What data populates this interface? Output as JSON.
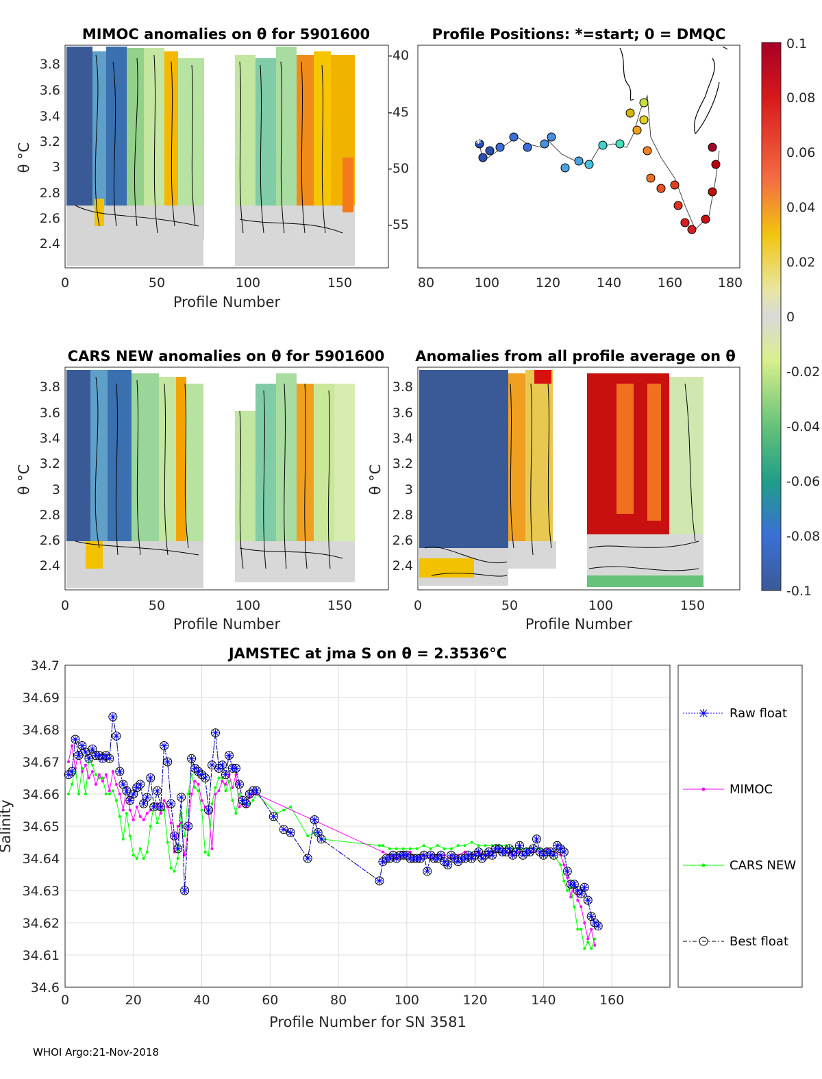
{
  "footer": "WHOI Argo:21-Nov-2018",
  "colorbar": {
    "ticks": [
      "0.1",
      "0.08",
      "0.06",
      "0.04",
      "0.02",
      "0",
      "-0.02",
      "-0.04",
      "-0.06",
      "-0.08",
      "-0.1"
    ]
  },
  "panels": {
    "mimoc": {
      "title": "MIMOC anomalies on θ  for 5901600",
      "ylabel": "θ °C",
      "xlabel": "Profile Number",
      "xticks": [
        "0",
        "50",
        "100",
        "150"
      ],
      "yticks": [
        "3.8",
        "3.6",
        "3.4",
        "3.2",
        "3",
        "2.8",
        "2.6",
        "2.4"
      ]
    },
    "positions": {
      "title": "Profile Positions: *=start; 0 = DMQC",
      "xticks": [
        "80",
        "100",
        "120",
        "140",
        "160",
        "180"
      ],
      "yticks": [
        "-40",
        "-45",
        "-50",
        "-55"
      ]
    },
    "cars": {
      "title": "CARS NEW anomalies on θ for 5901600",
      "ylabel": "θ °C",
      "xlabel": "Profile Number",
      "xticks": [
        "0",
        "50",
        "100",
        "150"
      ],
      "yticks": [
        "3.8",
        "3.6",
        "3.4",
        "3.2",
        "3",
        "2.8",
        "2.6",
        "2.4"
      ]
    },
    "allavg": {
      "title": "Anomalies from all profile average on θ",
      "ylabel": "θ °C",
      "xlabel": "Profile Number",
      "xticks": [
        "0",
        "50",
        "100",
        "150"
      ],
      "yticks": [
        "3.8",
        "3.6",
        "3.4",
        "3.2",
        "3",
        "2.8",
        "2.6",
        "2.4"
      ]
    }
  },
  "chart_data": {
    "type": "line",
    "title": "JAMSTEC at jma S on θ = 2.3536°C",
    "xlabel": "Profile Number for SN 3581",
    "ylabel": "Salinity",
    "xlim": [
      0,
      177
    ],
    "ylim": [
      34.6,
      34.7
    ],
    "xticks": [
      "0",
      "20",
      "40",
      "60",
      "80",
      "100",
      "120",
      "140",
      "160"
    ],
    "yticks": [
      "34.7",
      "34.69",
      "34.68",
      "34.67",
      "34.66",
      "34.65",
      "34.64",
      "34.63",
      "34.62",
      "34.61",
      "34.6"
    ],
    "legend_position": "right",
    "series": [
      {
        "name": "Raw float",
        "color": "#0000ff",
        "x": [
          1,
          2,
          3,
          4,
          5,
          6,
          7,
          8,
          9,
          10,
          11,
          12,
          13,
          14,
          15,
          16,
          17,
          18,
          19,
          20,
          21,
          22,
          23,
          24,
          25,
          26,
          27,
          28,
          29,
          30,
          31,
          32,
          33,
          34,
          35,
          36,
          37,
          38,
          39,
          40,
          41,
          42,
          43,
          44,
          45,
          46,
          47,
          48,
          49,
          50,
          51,
          52,
          53,
          54,
          55,
          56,
          61,
          64,
          66,
          71,
          73,
          74,
          75,
          92,
          93,
          94,
          95,
          96,
          97,
          98,
          99,
          100,
          101,
          102,
          103,
          104,
          105,
          106,
          107,
          108,
          109,
          110,
          111,
          112,
          113,
          114,
          115,
          116,
          117,
          118,
          119,
          120,
          121,
          122,
          123,
          124,
          125,
          126,
          127,
          128,
          129,
          130,
          131,
          132,
          133,
          134,
          135,
          136,
          137,
          138,
          139,
          140,
          141,
          142,
          143,
          144,
          145,
          146,
          147,
          148,
          149,
          150,
          151,
          152,
          153,
          154,
          155,
          156
        ],
        "y": [
          34.666,
          34.667,
          34.677,
          34.672,
          34.675,
          34.673,
          34.671,
          34.674,
          34.672,
          34.672,
          34.671,
          34.672,
          34.671,
          34.684,
          34.678,
          34.667,
          34.663,
          34.661,
          34.658,
          34.66,
          34.662,
          34.663,
          34.657,
          34.659,
          34.665,
          34.656,
          34.661,
          34.656,
          34.675,
          34.67,
          34.657,
          34.647,
          34.643,
          34.659,
          34.63,
          34.65,
          34.671,
          34.668,
          34.667,
          34.666,
          34.665,
          34.655,
          34.669,
          34.679,
          34.668,
          34.669,
          34.666,
          34.672,
          34.668,
          34.668,
          34.663,
          34.658,
          34.657,
          34.66,
          34.661,
          34.661,
          34.653,
          34.649,
          34.648,
          34.64,
          34.652,
          34.648,
          34.646,
          34.633,
          34.639,
          34.64,
          34.64,
          34.641,
          34.64,
          34.641,
          34.641,
          34.641,
          34.64,
          34.64,
          34.64,
          34.64,
          34.641,
          34.636,
          34.641,
          34.64,
          34.64,
          34.641,
          34.639,
          34.638,
          34.641,
          34.64,
          34.639,
          34.64,
          34.64,
          34.641,
          34.64,
          34.641,
          34.642,
          34.64,
          34.641,
          34.642,
          34.641,
          34.643,
          34.643,
          34.642,
          34.642,
          34.643,
          34.641,
          34.642,
          34.644,
          34.641,
          34.642,
          34.642,
          34.643,
          34.646,
          34.642,
          34.641,
          34.642,
          34.642,
          34.641,
          34.644,
          34.643,
          34.642,
          34.636,
          34.632,
          34.632,
          34.63,
          34.629,
          34.631,
          34.627,
          34.622,
          34.62,
          34.619
        ]
      },
      {
        "name": "MIMOC",
        "color": "#ff00ff",
        "x": [
          1,
          2,
          3,
          4,
          5,
          6,
          7,
          8,
          9,
          10,
          11,
          12,
          13,
          14,
          15,
          16,
          17,
          18,
          19,
          20,
          21,
          22,
          23,
          24,
          25,
          26,
          27,
          28,
          29,
          30,
          31,
          32,
          33,
          34,
          35,
          36,
          37,
          38,
          39,
          40,
          41,
          42,
          43,
          44,
          45,
          46,
          47,
          48,
          49,
          50,
          51,
          52,
          53,
          54,
          55,
          56,
          93,
          95,
          97,
          99,
          101,
          103,
          105,
          107,
          109,
          111,
          113,
          115,
          117,
          119,
          121,
          123,
          125,
          127,
          129,
          131,
          133,
          135,
          137,
          139,
          141,
          143,
          145,
          146,
          147,
          148,
          149,
          150,
          151,
          152,
          153,
          154,
          155
        ],
        "y": [
          34.67,
          34.675,
          34.668,
          34.673,
          34.667,
          34.669,
          34.665,
          34.667,
          34.663,
          34.666,
          34.664,
          34.666,
          34.661,
          34.667,
          34.663,
          34.66,
          34.655,
          34.662,
          34.655,
          34.652,
          34.656,
          34.653,
          34.652,
          34.654,
          34.655,
          34.656,
          34.657,
          34.654,
          34.658,
          34.656,
          34.651,
          34.642,
          34.65,
          34.651,
          34.641,
          34.649,
          34.66,
          34.664,
          34.663,
          34.658,
          34.656,
          34.654,
          34.643,
          34.66,
          34.661,
          34.664,
          34.663,
          34.666,
          34.662,
          34.666,
          34.656,
          34.657,
          34.656,
          34.659,
          34.66,
          34.66,
          34.642,
          34.641,
          34.64,
          34.641,
          34.642,
          34.64,
          34.641,
          34.64,
          34.641,
          34.641,
          34.64,
          34.641,
          34.642,
          34.641,
          34.642,
          34.641,
          34.642,
          34.642,
          34.642,
          34.641,
          34.642,
          34.642,
          34.642,
          34.642,
          34.643,
          34.642,
          34.641,
          34.638,
          34.634,
          34.628,
          34.632,
          34.627,
          34.625,
          34.62,
          34.615,
          34.618,
          34.613
        ]
      },
      {
        "name": "CARS NEW",
        "color": "#00ff00",
        "x": [
          1,
          2,
          3,
          4,
          5,
          6,
          7,
          8,
          9,
          10,
          11,
          12,
          13,
          14,
          15,
          16,
          17,
          18,
          19,
          20,
          21,
          22,
          23,
          24,
          25,
          26,
          27,
          28,
          29,
          30,
          31,
          32,
          33,
          34,
          35,
          36,
          37,
          38,
          39,
          40,
          41,
          42,
          43,
          44,
          45,
          46,
          47,
          48,
          49,
          50,
          51,
          52,
          53,
          54,
          55,
          56,
          62,
          64,
          66,
          71,
          73,
          75,
          92,
          93,
          95,
          97,
          99,
          101,
          103,
          105,
          107,
          109,
          111,
          113,
          115,
          117,
          119,
          121,
          123,
          125,
          127,
          129,
          131,
          133,
          135,
          137,
          139,
          141,
          143,
          145,
          146,
          147,
          148,
          149,
          150,
          151,
          152,
          153,
          154,
          155
        ],
        "y": [
          34.66,
          34.663,
          34.668,
          34.66,
          34.668,
          34.66,
          34.671,
          34.669,
          34.666,
          34.665,
          34.665,
          34.66,
          34.66,
          34.661,
          34.658,
          34.653,
          34.646,
          34.654,
          34.647,
          34.641,
          34.64,
          34.643,
          34.64,
          34.642,
          34.65,
          34.657,
          34.651,
          34.655,
          34.655,
          34.645,
          34.637,
          34.636,
          34.64,
          34.654,
          34.647,
          34.66,
          34.666,
          34.662,
          34.661,
          34.655,
          34.642,
          34.641,
          34.657,
          34.662,
          34.665,
          34.665,
          34.661,
          34.664,
          34.658,
          34.654,
          34.66,
          34.658,
          34.656,
          34.657,
          34.658,
          34.66,
          34.654,
          34.655,
          34.656,
          34.647,
          34.648,
          34.646,
          34.644,
          34.644,
          34.643,
          34.643,
          34.643,
          34.643,
          34.643,
          34.644,
          34.643,
          34.644,
          34.643,
          34.643,
          34.644,
          34.644,
          34.645,
          34.644,
          34.644,
          34.644,
          34.644,
          34.644,
          34.643,
          34.643,
          34.643,
          34.643,
          34.643,
          34.642,
          34.641,
          34.638,
          34.633,
          34.63,
          34.631,
          34.625,
          34.618,
          34.618,
          34.612,
          34.614,
          34.612,
          34.615
        ]
      },
      {
        "name": "Best float",
        "color": "#000000",
        "x": [
          1,
          2,
          3,
          4,
          5,
          6,
          7,
          8,
          9,
          10,
          11,
          12,
          13,
          14,
          15,
          16,
          17,
          18,
          19,
          20,
          21,
          22,
          23,
          24,
          25,
          26,
          27,
          28,
          29,
          30,
          31,
          32,
          33,
          34,
          35,
          36,
          37,
          38,
          39,
          40,
          41,
          42,
          43,
          44,
          45,
          46,
          47,
          48,
          49,
          50,
          51,
          52,
          53,
          54,
          55,
          56,
          61,
          64,
          66,
          71,
          73,
          74,
          75,
          92,
          93,
          94,
          95,
          96,
          97,
          98,
          99,
          100,
          101,
          102,
          103,
          104,
          105,
          106,
          107,
          108,
          109,
          110,
          111,
          112,
          113,
          114,
          115,
          116,
          117,
          118,
          119,
          120,
          121,
          122,
          123,
          124,
          125,
          126,
          127,
          128,
          129,
          130,
          131,
          132,
          133,
          134,
          135,
          136,
          137,
          138,
          139,
          140,
          141,
          142,
          143,
          144,
          145,
          146,
          147,
          148,
          149,
          150,
          151,
          152,
          153,
          154,
          155,
          156
        ],
        "y": [
          34.666,
          34.667,
          34.677,
          34.672,
          34.675,
          34.673,
          34.671,
          34.674,
          34.672,
          34.672,
          34.671,
          34.672,
          34.671,
          34.684,
          34.678,
          34.667,
          34.663,
          34.661,
          34.658,
          34.66,
          34.662,
          34.663,
          34.657,
          34.659,
          34.665,
          34.656,
          34.661,
          34.656,
          34.675,
          34.67,
          34.657,
          34.647,
          34.643,
          34.659,
          34.63,
          34.65,
          34.671,
          34.668,
          34.667,
          34.666,
          34.665,
          34.655,
          34.669,
          34.679,
          34.668,
          34.669,
          34.666,
          34.672,
          34.668,
          34.668,
          34.663,
          34.658,
          34.657,
          34.66,
          34.661,
          34.661,
          34.653,
          34.649,
          34.648,
          34.64,
          34.652,
          34.648,
          34.646,
          34.633,
          34.639,
          34.64,
          34.64,
          34.641,
          34.64,
          34.641,
          34.641,
          34.641,
          34.64,
          34.64,
          34.64,
          34.64,
          34.641,
          34.636,
          34.641,
          34.64,
          34.64,
          34.641,
          34.639,
          34.638,
          34.641,
          34.64,
          34.639,
          34.64,
          34.64,
          34.641,
          34.64,
          34.641,
          34.642,
          34.64,
          34.641,
          34.642,
          34.641,
          34.643,
          34.643,
          34.642,
          34.642,
          34.643,
          34.641,
          34.642,
          34.644,
          34.641,
          34.642,
          34.642,
          34.643,
          34.646,
          34.642,
          34.641,
          34.642,
          34.642,
          34.641,
          34.644,
          34.643,
          34.642,
          34.636,
          34.632,
          34.632,
          34.63,
          34.629,
          34.631,
          34.627,
          34.622,
          34.62,
          34.619
        ]
      }
    ]
  }
}
